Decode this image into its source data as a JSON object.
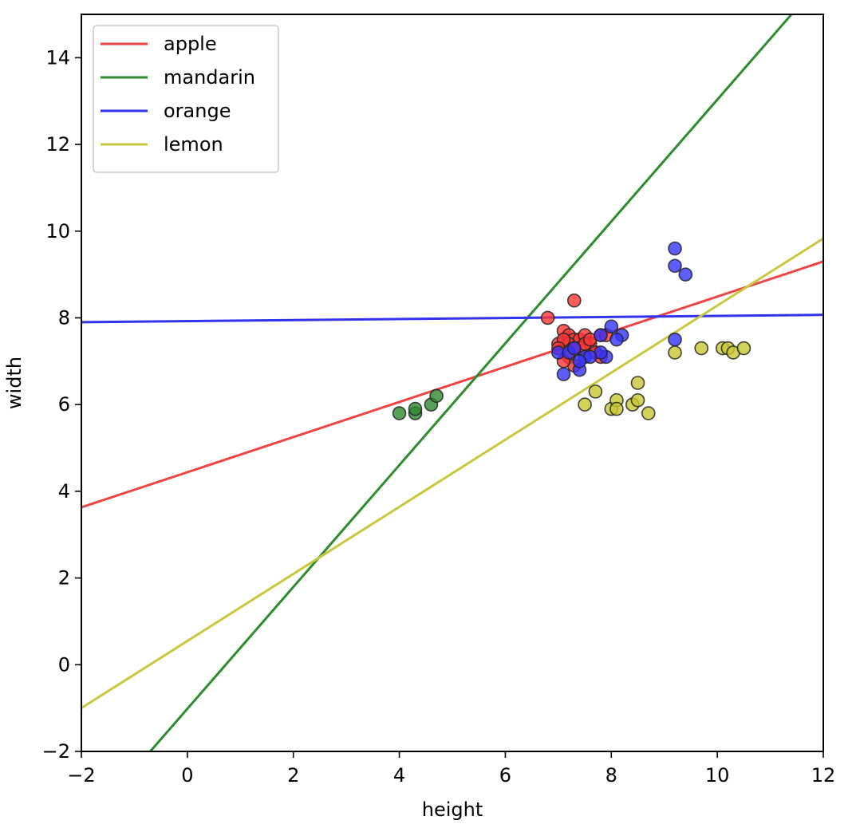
{
  "chart_data": {
    "type": "scatter",
    "xlabel": "height",
    "ylabel": "width",
    "xlim": [
      -2,
      12
    ],
    "ylim": [
      -2,
      15
    ],
    "x_ticks": [
      -2,
      0,
      2,
      4,
      6,
      8,
      10,
      12
    ],
    "y_ticks": [
      -2,
      0,
      2,
      4,
      6,
      8,
      10,
      12,
      14
    ],
    "x_tick_labels": [
      "−2",
      "0",
      "2",
      "4",
      "6",
      "8",
      "10",
      "12"
    ],
    "y_tick_labels": [
      "−2",
      "0",
      "2",
      "4",
      "6",
      "8",
      "10",
      "12",
      "14"
    ],
    "grid": false,
    "legend_position": "upper-left",
    "lines": [
      {
        "name": "apple",
        "color": "#ef4444",
        "x": [
          -2,
          12
        ],
        "y": [
          3.63,
          9.3
        ]
      },
      {
        "name": "mandarin",
        "color": "#2e8b2e",
        "x": [
          -0.7,
          11.4
        ],
        "y": [
          -2,
          15
        ]
      },
      {
        "name": "orange",
        "color": "#3333ee",
        "x": [
          -2,
          12
        ],
        "y": [
          7.9,
          8.07
        ]
      },
      {
        "name": "lemon",
        "color": "#c8c840",
        "x": [
          -2,
          12
        ],
        "y": [
          -1.0,
          9.83
        ]
      }
    ],
    "scatter": [
      {
        "name": "apple",
        "color": "#ff3333",
        "points": [
          [
            6.8,
            8.0
          ],
          [
            7.3,
            8.4
          ],
          [
            7.0,
            7.4
          ],
          [
            7.1,
            7.7
          ],
          [
            7.2,
            7.6
          ],
          [
            7.3,
            7.5
          ],
          [
            7.4,
            7.5
          ],
          [
            7.5,
            7.6
          ],
          [
            7.6,
            7.4
          ],
          [
            7.7,
            7.2
          ],
          [
            7.8,
            7.1
          ],
          [
            7.2,
            7.4
          ],
          [
            7.1,
            7.5
          ],
          [
            7.0,
            7.3
          ],
          [
            7.4,
            7.3
          ],
          [
            7.2,
            7.1
          ],
          [
            7.3,
            6.9
          ],
          [
            7.1,
            7.0
          ],
          [
            7.5,
            7.4
          ],
          [
            7.6,
            7.5
          ],
          [
            7.8,
            7.6
          ],
          [
            7.9,
            7.6
          ],
          [
            7.3,
            7.3
          ]
        ]
      },
      {
        "name": "mandarin",
        "color": "#2e8b2e",
        "points": [
          [
            4.0,
            5.8
          ],
          [
            4.3,
            5.8
          ],
          [
            4.3,
            5.9
          ],
          [
            4.6,
            6.0
          ],
          [
            4.7,
            6.2
          ]
        ]
      },
      {
        "name": "orange",
        "color": "#3333ff",
        "points": [
          [
            9.2,
            9.6
          ],
          [
            9.2,
            9.2
          ],
          [
            9.4,
            9.0
          ],
          [
            9.2,
            7.5
          ],
          [
            8.0,
            7.8
          ],
          [
            7.8,
            7.6
          ],
          [
            8.2,
            7.6
          ],
          [
            8.1,
            7.5
          ],
          [
            7.1,
            6.7
          ],
          [
            7.4,
            6.8
          ],
          [
            7.5,
            7.1
          ],
          [
            7.9,
            7.1
          ],
          [
            7.0,
            7.2
          ],
          [
            7.2,
            7.2
          ],
          [
            7.3,
            7.3
          ],
          [
            7.8,
            7.2
          ],
          [
            7.6,
            7.1
          ],
          [
            7.4,
            7.0
          ]
        ]
      },
      {
        "name": "lemon",
        "color": "#c8c832",
        "points": [
          [
            9.2,
            7.2
          ],
          [
            9.7,
            7.3
          ],
          [
            10.1,
            7.3
          ],
          [
            10.2,
            7.3
          ],
          [
            10.3,
            7.2
          ],
          [
            10.5,
            7.3
          ],
          [
            7.5,
            6.0
          ],
          [
            7.7,
            6.3
          ],
          [
            8.0,
            5.9
          ],
          [
            8.1,
            6.1
          ],
          [
            8.1,
            5.9
          ],
          [
            8.4,
            6.0
          ],
          [
            8.5,
            6.1
          ],
          [
            8.5,
            6.5
          ],
          [
            8.7,
            5.8
          ]
        ]
      }
    ],
    "legend": [
      {
        "label": "apple",
        "color": "#ef4444"
      },
      {
        "label": "mandarin",
        "color": "#2e8b2e"
      },
      {
        "label": "orange",
        "color": "#3333ee"
      },
      {
        "label": "lemon",
        "color": "#c8c840"
      }
    ]
  }
}
